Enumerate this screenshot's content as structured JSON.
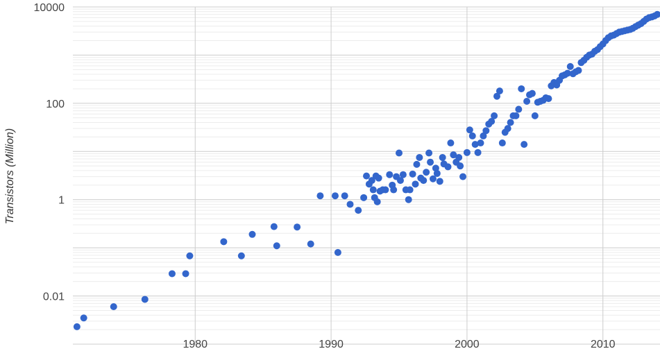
{
  "chart_data": {
    "type": "scatter",
    "title": "",
    "xlabel": "",
    "ylabel": "Transistors (Million)",
    "y_scale": "log",
    "xlim": [
      1971,
      2014.2
    ],
    "ylim": [
      0.001,
      10000
    ],
    "grid": true,
    "legend": "none",
    "color": "#3366cc",
    "x_ticks": [
      {
        "value": 1980,
        "label": "1980"
      },
      {
        "value": 1990,
        "label": "1990"
      },
      {
        "value": 2000,
        "label": "2000"
      },
      {
        "value": 2010,
        "label": "2010"
      }
    ],
    "y_ticks": [
      {
        "value": 0.01,
        "label": "0.01"
      },
      {
        "value": 1,
        "label": "1"
      },
      {
        "value": 100,
        "label": "100"
      },
      {
        "value": 10000,
        "label": "10000"
      }
    ],
    "points": [
      [
        1971.3,
        0.0023
      ],
      [
        1971.8,
        0.0035
      ],
      [
        1974.0,
        0.006
      ],
      [
        1976.3,
        0.0085
      ],
      [
        1978.3,
        0.029
      ],
      [
        1979.3,
        0.029
      ],
      [
        1979.6,
        0.068
      ],
      [
        1982.1,
        0.134
      ],
      [
        1983.4,
        0.068
      ],
      [
        1984.2,
        0.19
      ],
      [
        1985.8,
        0.275
      ],
      [
        1986.0,
        0.11
      ],
      [
        1987.5,
        0.27
      ],
      [
        1988.5,
        0.12
      ],
      [
        1989.2,
        1.2
      ],
      [
        1990.3,
        1.2
      ],
      [
        1990.5,
        0.08
      ],
      [
        1991.0,
        1.2
      ],
      [
        1991.4,
        0.8
      ],
      [
        1992.0,
        0.6
      ],
      [
        1992.4,
        1.1
      ],
      [
        1992.6,
        3.1
      ],
      [
        1992.8,
        2.1
      ],
      [
        1993.0,
        2.5
      ],
      [
        1993.1,
        1.6
      ],
      [
        1993.2,
        1.1
      ],
      [
        1993.3,
        3.1
      ],
      [
        1993.4,
        0.9
      ],
      [
        1993.5,
        2.8
      ],
      [
        1993.6,
        1.5
      ],
      [
        1993.8,
        1.6
      ],
      [
        1994.0,
        1.6
      ],
      [
        1994.3,
        3.3
      ],
      [
        1994.5,
        2.0
      ],
      [
        1994.6,
        1.6
      ],
      [
        1994.8,
        3.0
      ],
      [
        1995.0,
        9.3
      ],
      [
        1995.1,
        2.5
      ],
      [
        1995.3,
        3.3
      ],
      [
        1995.5,
        1.6
      ],
      [
        1995.7,
        1.0
      ],
      [
        1995.8,
        1.6
      ],
      [
        1996.0,
        3.4
      ],
      [
        1996.2,
        2.1
      ],
      [
        1996.3,
        5.4
      ],
      [
        1996.5,
        7.5
      ],
      [
        1996.6,
        2.8
      ],
      [
        1996.8,
        2.5
      ],
      [
        1997.0,
        3.7
      ],
      [
        1997.2,
        9.3
      ],
      [
        1997.3,
        6.0
      ],
      [
        1997.5,
        2.7
      ],
      [
        1997.7,
        4.5
      ],
      [
        1997.8,
        3.5
      ],
      [
        1998.0,
        2.4
      ],
      [
        1998.2,
        7.5
      ],
      [
        1998.3,
        5.5
      ],
      [
        1998.6,
        4.8
      ],
      [
        1998.8,
        15.0
      ],
      [
        1999.0,
        8.5
      ],
      [
        1999.2,
        6.0
      ],
      [
        1999.4,
        7.5
      ],
      [
        1999.5,
        5.0
      ],
      [
        1999.7,
        3.0
      ],
      [
        2000.0,
        9.5
      ],
      [
        2000.2,
        28.0
      ],
      [
        2000.4,
        21.0
      ],
      [
        2000.6,
        14.0
      ],
      [
        2000.8,
        9.5
      ],
      [
        2001.0,
        15.0
      ],
      [
        2001.2,
        21.0
      ],
      [
        2001.4,
        27.0
      ],
      [
        2001.6,
        37.0
      ],
      [
        2001.8,
        42.0
      ],
      [
        2002.0,
        55.0
      ],
      [
        2002.2,
        140.0
      ],
      [
        2002.4,
        180.0
      ],
      [
        2002.6,
        15.0
      ],
      [
        2002.8,
        25.0
      ],
      [
        2003.0,
        30.0
      ],
      [
        2003.2,
        40.0
      ],
      [
        2003.4,
        55.0
      ],
      [
        2003.6,
        55.0
      ],
      [
        2003.8,
        75.0
      ],
      [
        2004.0,
        200.0
      ],
      [
        2004.2,
        14.0
      ],
      [
        2004.4,
        110.0
      ],
      [
        2004.6,
        150.0
      ],
      [
        2004.8,
        160.0
      ],
      [
        2005.0,
        55.0
      ],
      [
        2005.2,
        105.0
      ],
      [
        2005.4,
        110.0
      ],
      [
        2005.6,
        115.0
      ],
      [
        2005.8,
        130.0
      ],
      [
        2006.0,
        125.0
      ],
      [
        2006.2,
        230.0
      ],
      [
        2006.4,
        270.0
      ],
      [
        2006.6,
        240.0
      ],
      [
        2006.8,
        300.0
      ],
      [
        2007.0,
        370.0
      ],
      [
        2007.2,
        390.0
      ],
      [
        2007.4,
        420.0
      ],
      [
        2007.6,
        580.0
      ],
      [
        2007.8,
        410.0
      ],
      [
        2008.0,
        450.0
      ],
      [
        2008.2,
        480.0
      ],
      [
        2008.4,
        700.0
      ],
      [
        2008.6,
        780.0
      ],
      [
        2008.8,
        900.0
      ],
      [
        2009.0,
        1000.0
      ],
      [
        2009.2,
        1050.0
      ],
      [
        2009.4,
        1200.0
      ],
      [
        2009.6,
        1300.0
      ],
      [
        2009.8,
        1500.0
      ],
      [
        2010.0,
        1700.0
      ],
      [
        2010.2,
        2000.0
      ],
      [
        2010.4,
        2300.0
      ],
      [
        2010.6,
        2500.0
      ],
      [
        2010.8,
        2600.0
      ],
      [
        2011.0,
        2800.0
      ],
      [
        2011.2,
        3000.0
      ],
      [
        2011.4,
        3100.0
      ],
      [
        2011.6,
        3200.0
      ],
      [
        2011.8,
        3300.0
      ],
      [
        2012.0,
        3400.0
      ],
      [
        2012.2,
        3600.0
      ],
      [
        2012.4,
        3900.0
      ],
      [
        2012.6,
        4200.0
      ],
      [
        2012.8,
        4500.0
      ],
      [
        2013.0,
        5000.0
      ],
      [
        2013.2,
        5600.0
      ],
      [
        2013.4,
        6000.0
      ],
      [
        2013.6,
        6200.0
      ],
      [
        2013.8,
        6500.0
      ],
      [
        2014.0,
        7000.0
      ]
    ]
  }
}
